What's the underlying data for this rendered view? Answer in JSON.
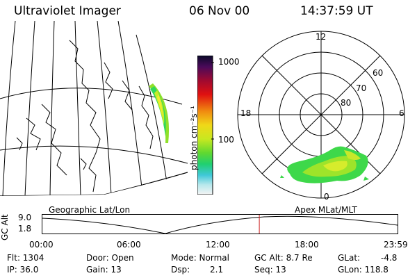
{
  "header": {
    "instrument": "Ultraviolet Imager",
    "date": "06 Nov 00",
    "time": "14:37:59 UT"
  },
  "colorbar": {
    "unit_label": "photon cm⁻²s⁻¹",
    "tick_1000": "1000",
    "tick_100": "100"
  },
  "polar": {
    "mlt_12": "12",
    "mlt_18": "18",
    "mlt_6": "6",
    "mlt_0": "0",
    "lat_60": "60",
    "lat_70": "70",
    "lat_80": "80"
  },
  "timeline": {
    "left_label": "Geographic Lat/Lon",
    "right_label": "Apex MLat/MLT",
    "y_axis_label": "GC Alt",
    "y_top": "9.0",
    "y_bottom": "1.8",
    "x_ticks": [
      "00:00",
      "06:00",
      "12:00",
      "18:00",
      "23:59"
    ],
    "current_time_hours": 14.63
  },
  "info": {
    "flt": "Flt: 1304",
    "ip": "IP: 36.0",
    "door": "Door: Open",
    "gain": "Gain: 13",
    "mode": "Mode: Normal",
    "dsp_label": "Dsp:",
    "dsp_value": "2.1",
    "gc_alt": "GC Alt: 8.7 Re",
    "seq": "Seq: 13",
    "glat_label": "GLat:",
    "glat_value": "-4.8",
    "glon": "GLon: 118.8"
  },
  "colors": {
    "timeline_marker": "#cc2020"
  }
}
